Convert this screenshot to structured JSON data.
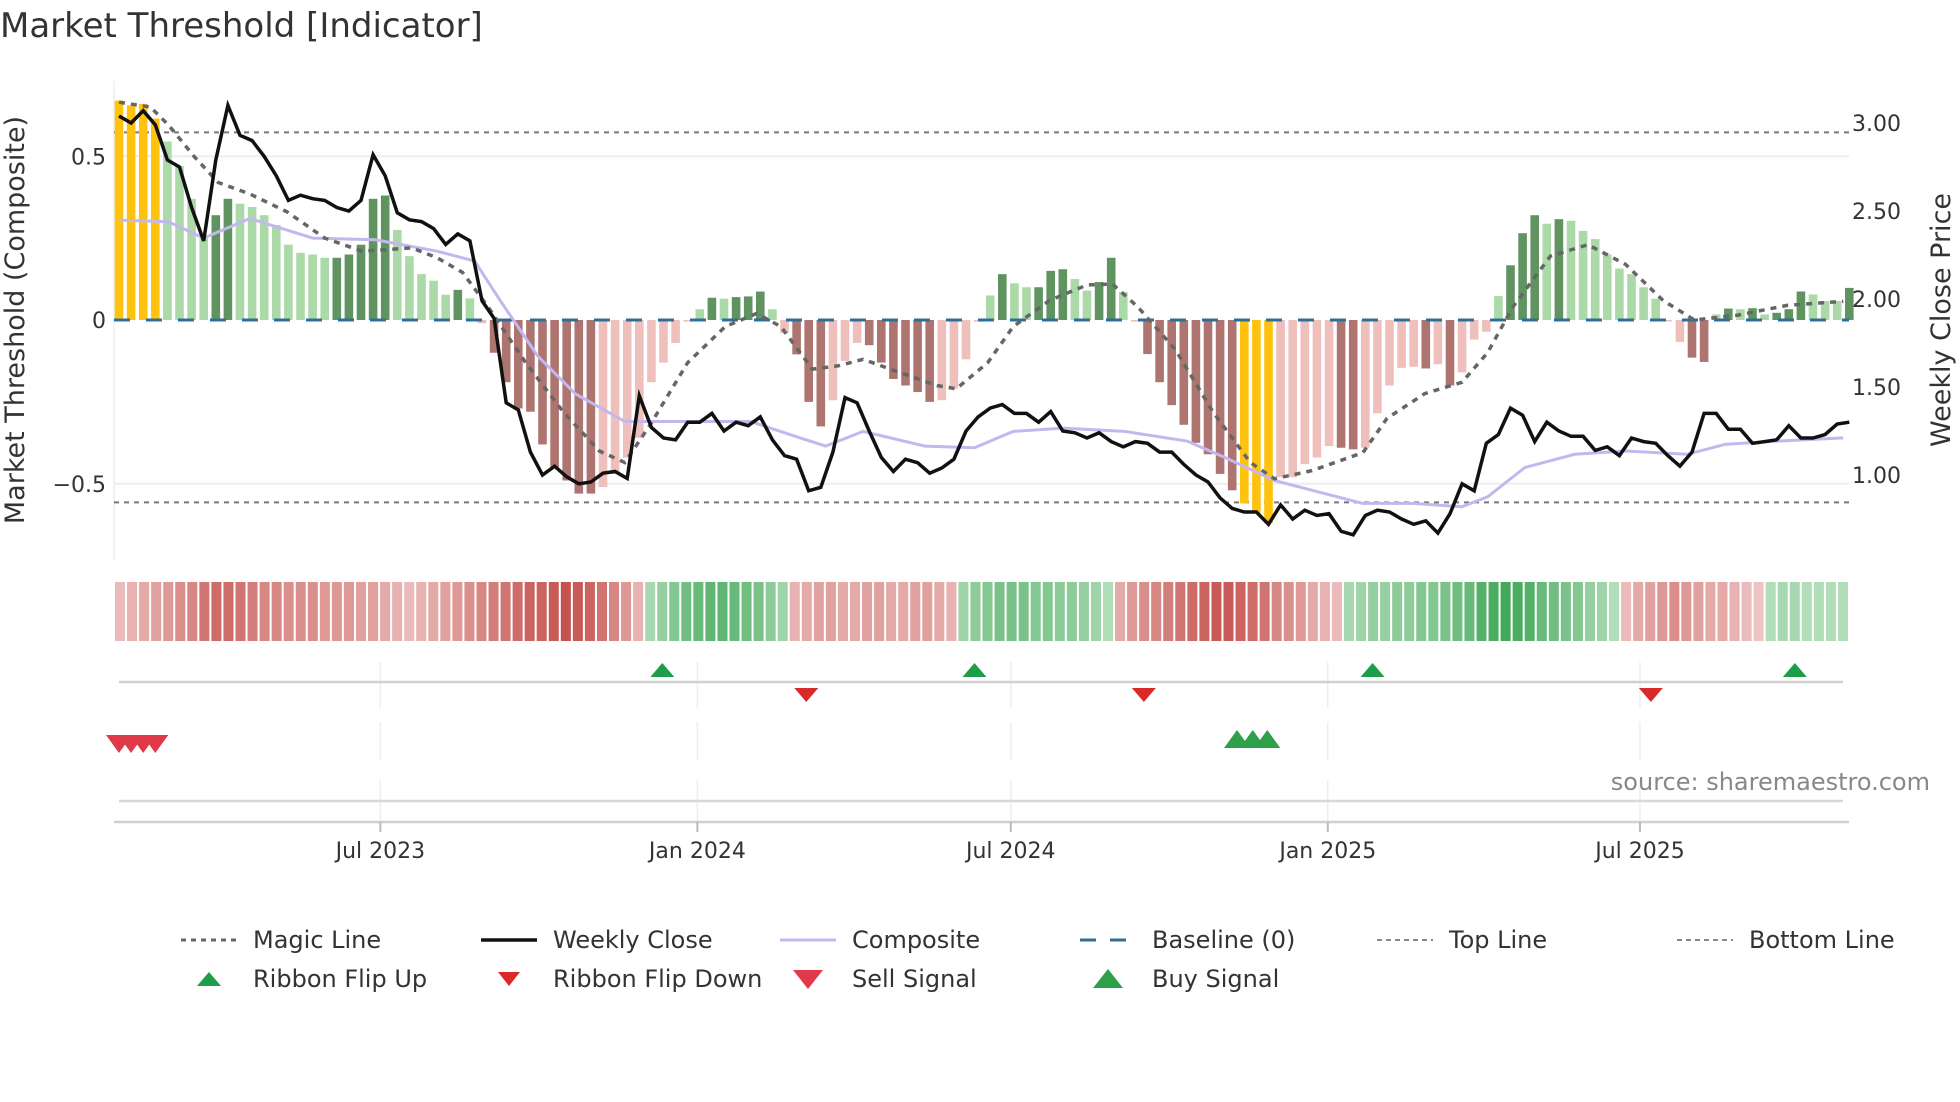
{
  "title": "Market Threshold [Indicator]",
  "source": "source: sharemaestro.com",
  "colors": {
    "yellow": "#ffc20e",
    "light_green": "#acd9a8",
    "dark_green": "#5f9460",
    "light_red": "#eebfbb",
    "dark_red": "#ad7470",
    "baseline": "#2c6f9a",
    "composite": "#c3b8ee",
    "magic": "#666666",
    "close": "#111111",
    "flip_up": "#1e9e4a",
    "flip_down": "#d92a2a",
    "sell": "#e0394a",
    "buy": "#2ea04a"
  },
  "chart_data": {
    "type": "bar",
    "title": "Market Threshold [Indicator]",
    "ylabel_left": "Market Threshold (Composite)",
    "ylabel_right": "Weekly Close Price",
    "ylim_left": [
      -0.75,
      0.73
    ],
    "ylim_right": [
      0.59,
      3.25
    ],
    "yticks_left": [
      {
        "value": 0.5,
        "label": "0.5"
      },
      {
        "value": 0,
        "label": "0"
      },
      {
        "value": -0.5,
        "label": "−0.5"
      }
    ],
    "yticks_right": [
      {
        "value": 3.0,
        "label": "3.00"
      },
      {
        "value": 2.5,
        "label": "2.50"
      },
      {
        "value": 2.0,
        "label": "2.00"
      },
      {
        "value": 1.5,
        "label": "1.50"
      },
      {
        "value": 1.0,
        "label": "1.00"
      }
    ],
    "xticks": [
      {
        "index": 21.6,
        "label": "Jul 2023"
      },
      {
        "index": 47.8,
        "label": "Jan 2024"
      },
      {
        "index": 73.7,
        "label": "Jul 2024"
      },
      {
        "index": 99.9,
        "label": "Jan 2025"
      },
      {
        "index": 125.7,
        "label": "Jul 2025"
      }
    ],
    "top_line": 0.573,
    "bottom_line": -0.557,
    "composite_bars": [
      0.67,
      0.655,
      0.66,
      0.615,
      0.545,
      0.47,
      0.37,
      0.25,
      0.32,
      0.37,
      0.355,
      0.345,
      0.32,
      0.29,
      0.23,
      0.205,
      0.2,
      0.19,
      0.19,
      0.2,
      0.23,
      0.37,
      0.38,
      0.275,
      0.195,
      0.14,
      0.12,
      0.077,
      0.092,
      0.066,
      -0.01,
      -0.1,
      -0.19,
      -0.27,
      -0.28,
      -0.38,
      -0.45,
      -0.49,
      -0.53,
      -0.53,
      -0.51,
      -0.47,
      -0.42,
      -0.36,
      -0.19,
      -0.13,
      -0.07,
      -0.005,
      0.033,
      0.068,
      0.065,
      0.07,
      0.072,
      0.087,
      0.033,
      -0.04,
      -0.105,
      -0.25,
      -0.325,
      -0.245,
      -0.125,
      -0.07,
      -0.077,
      -0.13,
      -0.18,
      -0.2,
      -0.22,
      -0.25,
      -0.245,
      -0.21,
      -0.12,
      -0.005,
      0.075,
      0.14,
      0.112,
      0.1,
      0.1,
      0.15,
      0.155,
      0.125,
      0.09,
      0.116,
      0.19,
      0.086,
      -0.005,
      -0.104,
      -0.19,
      -0.26,
      -0.32,
      -0.375,
      -0.41,
      -0.47,
      -0.52,
      -0.56,
      -0.59,
      -0.62,
      -0.48,
      -0.48,
      -0.44,
      -0.42,
      -0.385,
      -0.39,
      -0.395,
      -0.39,
      -0.285,
      -0.2,
      -0.146,
      -0.143,
      -0.148,
      -0.135,
      -0.2,
      -0.16,
      -0.06,
      -0.036,
      0.073,
      0.167,
      0.265,
      0.32,
      0.294,
      0.308,
      0.303,
      0.272,
      0.247,
      0.2,
      0.157,
      0.14,
      0.1,
      0.065,
      -0.003,
      -0.067,
      -0.115,
      -0.128,
      0.017,
      0.035,
      0.033,
      0.036,
      0.017,
      0.022,
      0.033,
      0.087,
      0.078,
      0.058,
      0.058,
      0.098
    ],
    "bar_strength": "YYYYLLLLDDLLLLLLLLDDDDDLLLLLDLLDDDDDDDDDLLLLLLLLLDLDDDLLDDDLLLDDDDDDLLLLLDLLDDDLLDDLLDDDDDDDDYYYLLLLLDDLLLLLDLDLLLLDDDLDLLLLLLLLLLDDLDLDLDDDLLLD",
    "weekly_close": [
      3.04,
      3.0,
      3.07,
      2.99,
      2.79,
      2.75,
      2.52,
      2.33,
      2.79,
      3.1,
      2.93,
      2.9,
      2.81,
      2.7,
      2.56,
      2.59,
      2.57,
      2.56,
      2.52,
      2.5,
      2.56,
      2.82,
      2.7,
      2.49,
      2.45,
      2.44,
      2.4,
      2.31,
      2.37,
      2.33,
      1.99,
      1.89,
      1.41,
      1.37,
      1.13,
      1.0,
      1.05,
      0.99,
      0.95,
      0.96,
      1.01,
      1.02,
      0.98,
      1.45,
      1.27,
      1.21,
      1.2,
      1.3,
      1.3,
      1.35,
      1.25,
      1.3,
      1.28,
      1.33,
      1.2,
      1.11,
      1.09,
      0.91,
      0.93,
      1.13,
      1.44,
      1.41,
      1.25,
      1.1,
      1.02,
      1.09,
      1.07,
      1.01,
      1.04,
      1.09,
      1.25,
      1.33,
      1.38,
      1.4,
      1.35,
      1.35,
      1.3,
      1.36,
      1.25,
      1.24,
      1.21,
      1.24,
      1.19,
      1.16,
      1.19,
      1.18,
      1.13,
      1.13,
      1.06,
      1.0,
      0.96,
      0.87,
      0.81,
      0.79,
      0.79,
      0.72,
      0.83,
      0.75,
      0.8,
      0.77,
      0.78,
      0.68,
      0.66,
      0.77,
      0.8,
      0.79,
      0.75,
      0.72,
      0.74,
      0.67,
      0.78,
      0.95,
      0.91,
      1.18,
      1.23,
      1.38,
      1.34,
      1.19,
      1.3,
      1.25,
      1.22,
      1.22,
      1.14,
      1.16,
      1.11,
      1.21,
      1.19,
      1.18,
      1.11,
      1.05,
      1.13,
      1.35,
      1.35,
      1.26,
      1.26,
      1.18,
      1.19,
      1.2,
      1.28,
      1.21,
      1.21,
      1.23,
      1.29,
      1.3
    ],
    "composite_line": [
      [
        0,
        0.305
      ],
      [
        4.1,
        0.3
      ],
      [
        7,
        0.25
      ],
      [
        10.8,
        0.31
      ],
      [
        16,
        0.25
      ],
      [
        21.2,
        0.245
      ],
      [
        26.3,
        0.21
      ],
      [
        29.4,
        0.18
      ],
      [
        31.5,
        0.06
      ],
      [
        34.6,
        -0.11
      ],
      [
        37.7,
        -0.225
      ],
      [
        41.8,
        -0.31
      ],
      [
        44.9,
        -0.31
      ],
      [
        52.2,
        -0.31
      ],
      [
        56.3,
        -0.36
      ],
      [
        58.4,
        -0.385
      ],
      [
        61.5,
        -0.34
      ],
      [
        66.6,
        -0.385
      ],
      [
        70.7,
        -0.39
      ],
      [
        73.9,
        -0.34
      ],
      [
        78,
        -0.33
      ],
      [
        83.1,
        -0.34
      ],
      [
        88.3,
        -0.37
      ],
      [
        91.4,
        -0.42
      ],
      [
        95.5,
        -0.49
      ],
      [
        98.6,
        -0.52
      ],
      [
        102.8,
        -0.56
      ],
      [
        106.9,
        -0.56
      ],
      [
        111,
        -0.57
      ],
      [
        113.1,
        -0.54
      ],
      [
        116.2,
        -0.45
      ],
      [
        120.3,
        -0.41
      ],
      [
        124.5,
        -0.4
      ],
      [
        129.6,
        -0.41
      ],
      [
        132.7,
        -0.38
      ],
      [
        136.9,
        -0.37
      ],
      [
        142.5,
        -0.36
      ]
    ],
    "magic_line": [
      [
        0,
        0.665
      ],
      [
        2.6,
        0.65
      ],
      [
        4.1,
        0.595
      ],
      [
        6.2,
        0.5
      ],
      [
        8.2,
        0.42
      ],
      [
        10.8,
        0.385
      ],
      [
        13.9,
        0.33
      ],
      [
        17,
        0.25
      ],
      [
        20.1,
        0.21
      ],
      [
        24.2,
        0.22
      ],
      [
        26.3,
        0.19
      ],
      [
        28.4,
        0.145
      ],
      [
        30.5,
        0.04
      ],
      [
        33.6,
        -0.13
      ],
      [
        36.7,
        -0.28
      ],
      [
        39.7,
        -0.4
      ],
      [
        41.8,
        -0.435
      ],
      [
        43.9,
        -0.32
      ],
      [
        47,
        -0.13
      ],
      [
        50.1,
        -0.02
      ],
      [
        52.7,
        0.02
      ],
      [
        54.7,
        -0.02
      ],
      [
        57.3,
        -0.15
      ],
      [
        59.4,
        -0.14
      ],
      [
        61.5,
        -0.12
      ],
      [
        64.5,
        -0.16
      ],
      [
        67.6,
        -0.2
      ],
      [
        69.2,
        -0.21
      ],
      [
        71.8,
        -0.13
      ],
      [
        73.9,
        -0.02
      ],
      [
        76.9,
        0.06
      ],
      [
        80,
        0.107
      ],
      [
        82.1,
        0.11
      ],
      [
        84.2,
        0.04
      ],
      [
        87.3,
        -0.09
      ],
      [
        90.4,
        -0.28
      ],
      [
        93.5,
        -0.435
      ],
      [
        95.5,
        -0.485
      ],
      [
        98.6,
        -0.46
      ],
      [
        102.8,
        -0.405
      ],
      [
        104.8,
        -0.3
      ],
      [
        107.9,
        -0.225
      ],
      [
        111,
        -0.19
      ],
      [
        113.1,
        -0.1
      ],
      [
        115.2,
        0.04
      ],
      [
        118.3,
        0.195
      ],
      [
        121.4,
        0.23
      ],
      [
        124.5,
        0.17
      ],
      [
        127.6,
        0.06
      ],
      [
        130.2,
        0
      ],
      [
        133.8,
        0.015
      ],
      [
        137.9,
        0.045
      ],
      [
        142.5,
        0.057
      ]
    ],
    "ribbon": [
      -0.2,
      -0.25,
      -0.3,
      -0.35,
      -0.4,
      -0.45,
      -0.5,
      -0.6,
      -0.65,
      -0.65,
      -0.6,
      -0.55,
      -0.5,
      -0.5,
      -0.45,
      -0.45,
      -0.45,
      -0.4,
      -0.4,
      -0.4,
      -0.35,
      -0.35,
      -0.3,
      -0.25,
      -0.2,
      -0.25,
      -0.3,
      -0.35,
      -0.4,
      -0.45,
      -0.5,
      -0.55,
      -0.6,
      -0.65,
      -0.7,
      -0.7,
      -0.75,
      -0.8,
      -0.75,
      -0.7,
      -0.6,
      -0.5,
      -0.4,
      -0.25,
      0.25,
      0.35,
      0.45,
      0.55,
      0.6,
      0.65,
      0.65,
      0.6,
      0.55,
      0.5,
      0.4,
      0.3,
      -0.25,
      -0.3,
      -0.35,
      -0.35,
      -0.3,
      -0.3,
      -0.35,
      -0.35,
      -0.3,
      -0.3,
      -0.35,
      -0.35,
      -0.3,
      -0.25,
      0.3,
      0.4,
      0.45,
      0.5,
      0.5,
      0.5,
      0.45,
      0.45,
      0.4,
      0.4,
      0.35,
      0.3,
      0.2,
      -0.3,
      -0.4,
      -0.45,
      -0.5,
      -0.55,
      -0.6,
      -0.65,
      -0.7,
      -0.75,
      -0.75,
      -0.7,
      -0.65,
      -0.6,
      -0.5,
      -0.45,
      -0.4,
      -0.3,
      -0.25,
      -0.2,
      0.25,
      0.3,
      0.35,
      0.35,
      0.4,
      0.4,
      0.45,
      0.45,
      0.5,
      0.55,
      0.6,
      0.7,
      0.75,
      0.8,
      0.75,
      0.7,
      0.6,
      0.55,
      0.5,
      0.45,
      0.35,
      0.3,
      0.2,
      -0.2,
      -0.3,
      -0.35,
      -0.4,
      -0.45,
      -0.4,
      -0.35,
      -0.3,
      -0.3,
      -0.25,
      -0.2,
      -0.15,
      0.2,
      0.25,
      0.25,
      0.2,
      0.2,
      0.2,
      0.2
    ],
    "ribbon_flip_up": [
      44.9,
      70.7,
      103.6,
      138.5
    ],
    "ribbon_flip_down": [
      56.8,
      84.7,
      126.6
    ],
    "sell_signal": [
      0,
      1,
      2,
      3
    ],
    "buy_signal": [
      92.4,
      93.7,
      94.9
    ],
    "legend_placement": "bottom"
  },
  "legend": [
    {
      "label": "Magic Line",
      "key": "magic"
    },
    {
      "label": "Weekly Close",
      "key": "close"
    },
    {
      "label": "Composite",
      "key": "composite"
    },
    {
      "label": "Baseline (0)",
      "key": "baseline"
    },
    {
      "label": "Top Line",
      "key": "top"
    },
    {
      "label": "Bottom Line",
      "key": "bottom"
    },
    {
      "label": "Ribbon Flip Up",
      "key": "flipup"
    },
    {
      "label": "Ribbon Flip Down",
      "key": "flipdown"
    },
    {
      "label": "Sell Signal",
      "key": "sell"
    },
    {
      "label": "Buy Signal",
      "key": "buy"
    }
  ]
}
